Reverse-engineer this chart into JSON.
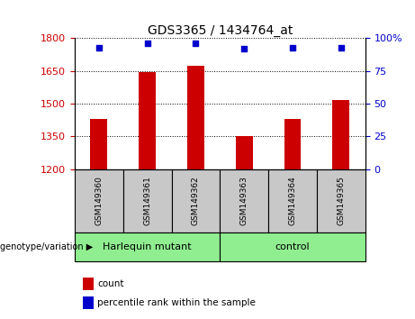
{
  "title": "GDS3365 / 1434764_at",
  "samples": [
    "GSM149360",
    "GSM149361",
    "GSM149362",
    "GSM149363",
    "GSM149364",
    "GSM149365"
  ],
  "count_values": [
    1430,
    1645,
    1675,
    1350,
    1430,
    1515
  ],
  "percentile_values": [
    93,
    96,
    96,
    92,
    93,
    93
  ],
  "ylim_left": [
    1200,
    1800
  ],
  "ylim_right": [
    0,
    100
  ],
  "yticks_left": [
    1200,
    1350,
    1500,
    1650,
    1800
  ],
  "yticks_right": [
    0,
    25,
    50,
    75,
    100
  ],
  "bar_color": "#cc0000",
  "dot_color": "#0000cc",
  "groups": [
    {
      "label": "Harlequin mutant",
      "indices": [
        0,
        1,
        2
      ]
    },
    {
      "label": "control",
      "indices": [
        3,
        4,
        5
      ]
    }
  ],
  "group_bg_color": "#90ee90",
  "sample_bg_color": "#c8c8c8",
  "legend_count_label": "count",
  "legend_percentile_label": "percentile rank within the sample",
  "genotype_label": "genotype/variation"
}
